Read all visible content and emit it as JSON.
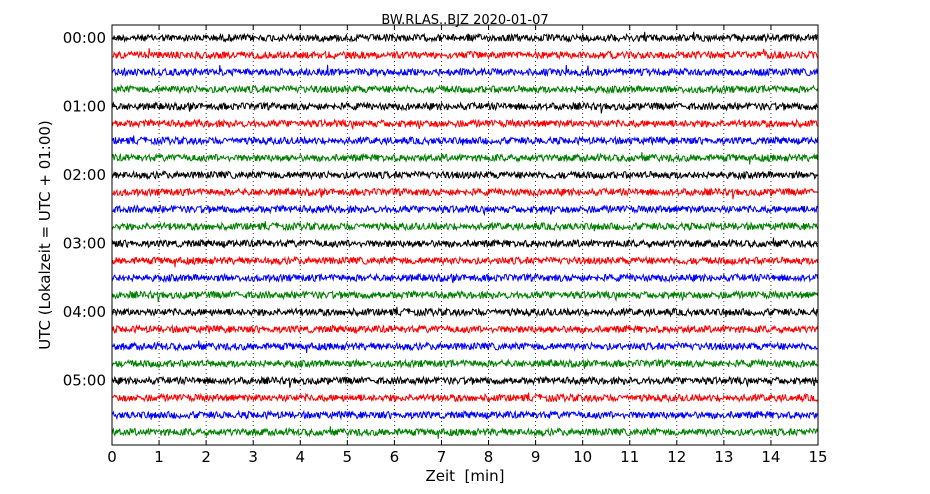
{
  "chart_data": {
    "type": "line",
    "title": "BW.RLAS..BJZ 2020-01-07",
    "xlabel": "Zeit  [min]",
    "ylabel": "UTC (Lokalzeit = UTC + 01:00)",
    "xlim": [
      0,
      15
    ],
    "x_ticks": [
      "0",
      "1",
      "2",
      "3",
      "4",
      "5",
      "6",
      "7",
      "8",
      "9",
      "10",
      "11",
      "12",
      "13",
      "14",
      "15"
    ],
    "y_tick_labels": [
      "00:00",
      "01:00",
      "02:00",
      "03:00",
      "04:00",
      "05:00"
    ],
    "grid": "vertical dotted at each minute",
    "trace_interval_minutes": 15,
    "trace_count": 24,
    "trace_colors": [
      "#000000",
      "#ff0000",
      "#0000ff",
      "#008000"
    ],
    "traces": [
      {
        "start": "00:00"
      },
      {
        "start": "00:15"
      },
      {
        "start": "00:30"
      },
      {
        "start": "00:45"
      },
      {
        "start": "01:00"
      },
      {
        "start": "01:15"
      },
      {
        "start": "01:30"
      },
      {
        "start": "01:45"
      },
      {
        "start": "02:00"
      },
      {
        "start": "02:15"
      },
      {
        "start": "02:30"
      },
      {
        "start": "02:45"
      },
      {
        "start": "03:00"
      },
      {
        "start": "03:15"
      },
      {
        "start": "03:30"
      },
      {
        "start": "03:45"
      },
      {
        "start": "04:00"
      },
      {
        "start": "04:15"
      },
      {
        "start": "04:30"
      },
      {
        "start": "04:45"
      },
      {
        "start": "05:00"
      },
      {
        "start": "05:15"
      },
      {
        "start": "05:30"
      },
      {
        "start": "05:45"
      }
    ]
  }
}
